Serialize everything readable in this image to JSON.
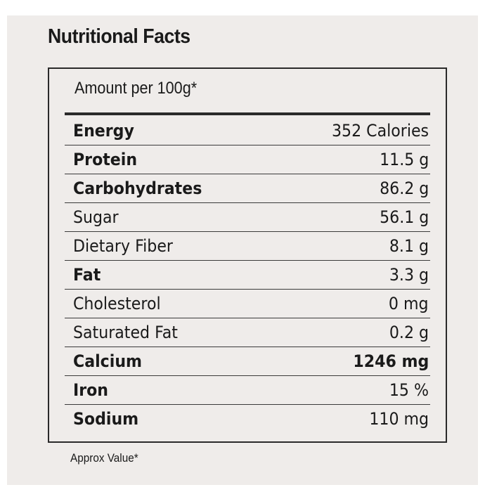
{
  "title": "Nutritional Facts",
  "table": {
    "header": "Amount per 100g*",
    "rows": [
      {
        "label": "Energy",
        "value": "352 Calories",
        "bold": true
      },
      {
        "label": "Protein",
        "value": "11.5 g",
        "bold": true
      },
      {
        "label": "Carbohydrates",
        "value": "86.2 g",
        "bold": true
      },
      {
        "label": "Sugar",
        "value": "56.1 g",
        "bold": false
      },
      {
        "label": "Dietary Fiber",
        "value": "8.1 g",
        "bold": false
      },
      {
        "label": "Fat",
        "value": "3.3 g",
        "bold": true
      },
      {
        "label": "Cholesterol",
        "value": "0 mg",
        "bold": false
      },
      {
        "label": "Saturated Fat",
        "value": "0.2 g",
        "bold": false
      },
      {
        "label": "Calcium",
        "value": "1246 mg",
        "bold": true,
        "value_bold": true
      },
      {
        "label": "Iron",
        "value": "15 %",
        "bold": true
      },
      {
        "label": "Sodium",
        "value": "110 mg",
        "bold": true
      }
    ]
  },
  "footnote": "Approx Value*"
}
